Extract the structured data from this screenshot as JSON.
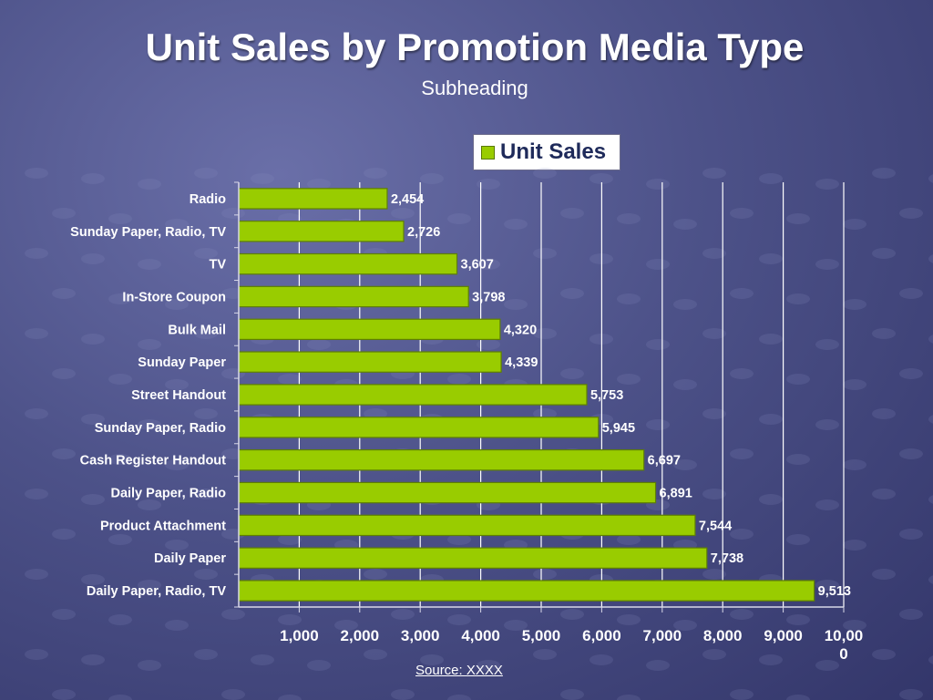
{
  "chart_data": {
    "type": "bar",
    "orientation": "horizontal",
    "title": "Unit Sales by Promotion Media Type",
    "subtitle": "Subheading",
    "source": "Source:  XXXX",
    "legend": {
      "position": "top-right",
      "entries": [
        "Unit Sales"
      ]
    },
    "categories": [
      "Radio",
      "Sunday Paper, Radio, TV",
      "TV",
      "In-Store Coupon",
      "Bulk Mail",
      "Sunday Paper",
      "Street Handout",
      "Sunday Paper, Radio",
      "Cash Register Handout",
      "Daily Paper, Radio",
      "Product Attachment",
      "Daily Paper",
      "Daily Paper, Radio, TV"
    ],
    "series": [
      {
        "name": "Unit Sales",
        "values": [
          2454,
          2726,
          3607,
          3798,
          4320,
          4339,
          5753,
          5945,
          6697,
          6891,
          7544,
          7738,
          9513
        ],
        "data_labels": [
          "2,454",
          "2,726",
          "3,607",
          "3,798",
          "4,320",
          "4,339",
          "5,753",
          "5,945",
          "6,697",
          "6,891",
          "7,544",
          "7,738",
          "9,513"
        ]
      }
    ],
    "xlim": [
      0,
      10000
    ],
    "x_ticks": [
      1000,
      2000,
      3000,
      4000,
      5000,
      6000,
      7000,
      8000,
      9000,
      10000
    ],
    "x_tick_labels": [
      "1,000",
      "2,000",
      "3,000",
      "4,000",
      "5,000",
      "6,000",
      "7,000",
      "8,000",
      "9,000",
      "10,00\n0"
    ],
    "grid": true,
    "colors": {
      "bar": "#99cc00",
      "bar_border": "#5f8000",
      "gridline": "#ffffff",
      "text": "#ffffff"
    }
  }
}
